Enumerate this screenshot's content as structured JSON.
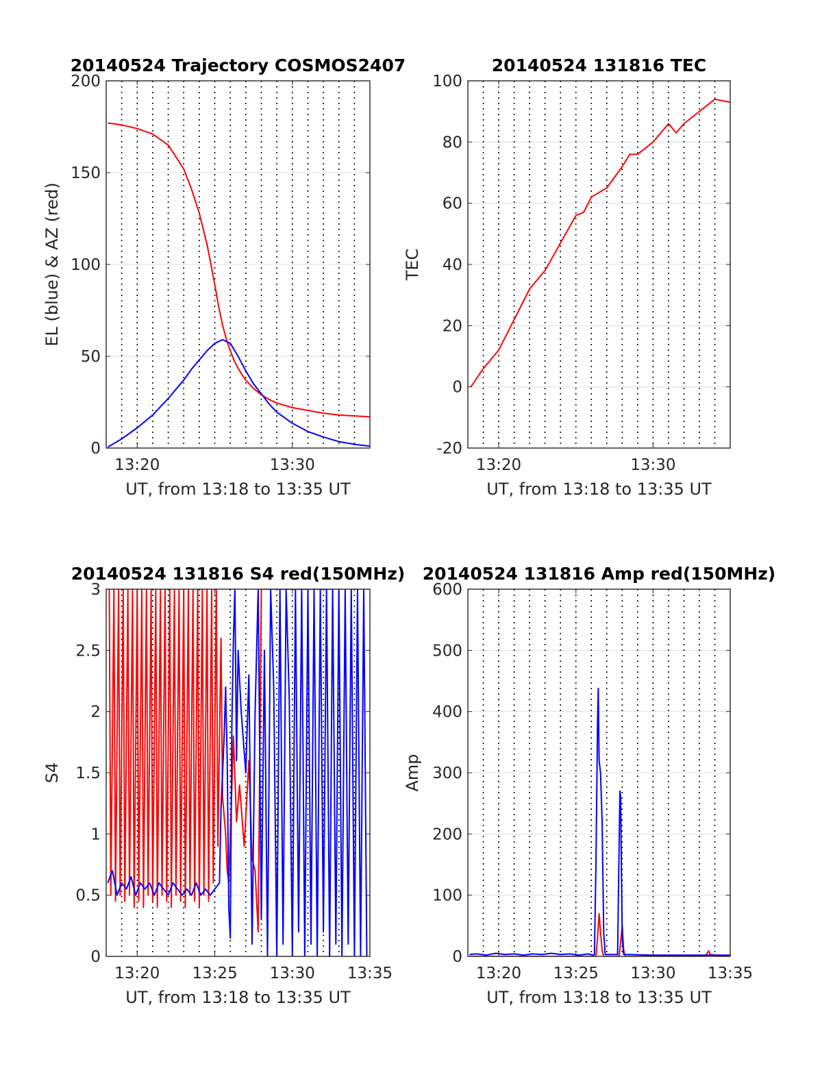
{
  "colors": {
    "red": "#ff0000",
    "blue": "#0000ff",
    "axis": "#262626",
    "grid": "#dedede"
  },
  "chart_data": [
    {
      "type": "line",
      "title": "20140524 Trajectory COSMOS2407",
      "xlabel": "UT, from 13:18 to 13:35 UT",
      "ylabel": "EL (blue) & AZ (red)",
      "xlim": [
        13.3,
        13.5833
      ],
      "ylim": [
        0,
        200
      ],
      "xticks": [
        {
          "v": 13.3333,
          "label": "13:20"
        },
        {
          "v": 13.5,
          "label": "13:30"
        }
      ],
      "yticks": [
        0,
        50,
        100,
        150,
        200
      ],
      "grid": true,
      "series": [
        {
          "color": "red",
          "x": [
            13.3017,
            13.3167,
            13.3333,
            13.35,
            13.3667,
            13.3833,
            13.3917,
            13.4,
            13.4083,
            13.4167,
            13.4208,
            13.425,
            13.4292,
            13.4333,
            13.4375,
            13.4417,
            13.4458,
            13.45,
            13.4583,
            13.4667,
            13.475,
            13.4833,
            13.5,
            13.5167,
            13.5333,
            13.55,
            13.5667,
            13.5833
          ],
          "y": [
            177,
            176,
            174,
            171,
            165,
            152,
            141,
            128,
            111,
            89,
            77,
            67,
            59,
            53,
            47.5,
            43.5,
            40,
            37,
            32.5,
            29,
            26.5,
            24.5,
            22,
            20.5,
            19,
            18,
            17.5,
            17
          ]
        },
        {
          "color": "blue",
          "x": [
            13.3017,
            13.3167,
            13.3333,
            13.35,
            13.3667,
            13.3833,
            13.3917,
            13.4,
            13.4083,
            13.4167,
            13.425,
            13.4333,
            13.4417,
            13.4458,
            13.45,
            13.4583,
            13.4667,
            13.475,
            13.4833,
            13.5,
            13.5167,
            13.5333,
            13.55,
            13.5667,
            13.5833
          ],
          "y": [
            0.5,
            5,
            11,
            18,
            27,
            37,
            43,
            48,
            53,
            57,
            59,
            57,
            50,
            46,
            42,
            35,
            29.5,
            24,
            19.5,
            13.5,
            9,
            6,
            3.5,
            2,
            1
          ]
        }
      ]
    },
    {
      "type": "line",
      "title": "20140524 131816 TEC",
      "xlabel": "UT, from 13:18 to 13:35 UT",
      "ylabel": "TEC",
      "xlim": [
        13.3,
        13.5833
      ],
      "ylim": [
        -20,
        100
      ],
      "xticks": [
        {
          "v": 13.3333,
          "label": "13:20"
        },
        {
          "v": 13.5,
          "label": "13:30"
        }
      ],
      "yticks": [
        -20,
        0,
        20,
        40,
        60,
        80,
        100
      ],
      "grid": true,
      "series": [
        {
          "color": "red",
          "x": [
            13.3033,
            13.3167,
            13.3333,
            13.35,
            13.3667,
            13.3833,
            13.4,
            13.4167,
            13.425,
            13.4333,
            13.45,
            13.4667,
            13.475,
            13.4833,
            13.5,
            13.5167,
            13.525,
            13.5333,
            13.55,
            13.5667,
            13.5833
          ],
          "y": [
            0,
            6,
            12,
            22,
            32,
            38,
            47,
            56,
            57,
            62,
            65,
            72,
            76,
            76,
            80,
            86,
            83,
            86,
            90,
            94,
            93
          ]
        }
      ]
    },
    {
      "type": "line",
      "title": "20140524 131816 S4 red(150MHz)",
      "xlabel": "UT, from 13:18 to 13:35 UT",
      "ylabel": "S4",
      "xlim": [
        13.3,
        13.5833
      ],
      "ylim": [
        0,
        3
      ],
      "xticks": [
        {
          "v": 13.3333,
          "label": "13:20"
        },
        {
          "v": 13.4167,
          "label": "13:25"
        },
        {
          "v": 13.5,
          "label": "13:30"
        },
        {
          "v": 13.5833,
          "label": "13:35"
        }
      ],
      "yticks": [
        0,
        0.5,
        1,
        1.5,
        2,
        2.5,
        3
      ],
      "grid": true,
      "series": [
        {
          "color": "red",
          "x": [
            13.3033,
            13.305,
            13.3083,
            13.31,
            13.3133,
            13.315,
            13.3183,
            13.32,
            13.3233,
            13.325,
            13.3283,
            13.33,
            13.3333,
            13.335,
            13.3383,
            13.34,
            13.3433,
            13.345,
            13.3483,
            13.35,
            13.3533,
            13.355,
            13.3583,
            13.36,
            13.3633,
            13.365,
            13.3683,
            13.37,
            13.3733,
            13.375,
            13.3783,
            13.38,
            13.3833,
            13.385,
            13.3883,
            13.39,
            13.3933,
            13.395,
            13.3983,
            13.4,
            13.4033,
            13.405,
            13.4083,
            13.41,
            13.4133,
            13.415,
            13.4183,
            13.42,
            13.4233,
            13.425,
            13.4283,
            13.43,
            13.4317,
            13.4367,
            13.44,
            13.4433,
            13.4483,
            13.4533,
            13.4567,
            13.46,
            13.4633,
            13.4667,
            13.5,
            13.5333,
            13.5417
          ],
          "y": [
            3,
            0.5,
            3,
            0.45,
            3,
            0.5,
            3,
            0.45,
            3,
            0.5,
            3,
            0.4,
            3,
            0.45,
            3,
            0.4,
            3,
            0.5,
            3,
            0.45,
            3,
            0.4,
            3,
            0.5,
            3,
            0.45,
            3,
            0.4,
            3,
            0.5,
            3,
            0.45,
            3,
            0.4,
            3,
            0.5,
            3,
            0.45,
            3,
            0.4,
            3,
            0.5,
            3,
            0.45,
            3,
            0.6,
            3,
            0.9,
            2.6,
            1.3,
            1.0,
            0.7,
            0.6,
            1.8,
            1.1,
            1.4,
            0.9,
            1.6,
            0.8,
            0.7,
            0.2,
            3,
            3,
            3,
            3
          ]
        },
        {
          "color": "blue",
          "x": [
            13.3017,
            13.3067,
            13.3117,
            13.3167,
            13.3217,
            13.3267,
            13.3317,
            13.3367,
            13.3417,
            13.3467,
            13.3517,
            13.3567,
            13.3617,
            13.3667,
            13.3717,
            13.3767,
            13.3817,
            13.3867,
            13.3917,
            13.3967,
            13.4017,
            13.4067,
            13.4117,
            13.4167,
            13.4217,
            13.4233,
            13.4267,
            13.4283,
            13.43,
            13.4317,
            13.4333,
            13.435,
            13.4367,
            13.4383,
            13.44,
            13.4417,
            13.445,
            13.45,
            13.4533,
            13.4567,
            13.46,
            13.4633,
            13.4667,
            13.47,
            13.4733,
            13.4767,
            13.48,
            13.4833,
            13.4867,
            13.49,
            13.4933,
            13.4967,
            13.5,
            13.5033,
            13.5067,
            13.51,
            13.5133,
            13.5167,
            13.52,
            13.5233,
            13.5267,
            13.53,
            13.5333,
            13.5367,
            13.54,
            13.5433,
            13.5467,
            13.55,
            13.5533,
            13.5567,
            13.56,
            13.5633,
            13.5667,
            13.57,
            13.5733,
            13.5767,
            13.58
          ],
          "y": [
            0.6,
            0.7,
            0.5,
            0.6,
            0.55,
            0.65,
            0.5,
            0.6,
            0.55,
            0.6,
            0.5,
            0.6,
            0.55,
            0.5,
            0.6,
            0.55,
            0.5,
            0.55,
            0.5,
            0.6,
            0.5,
            0.55,
            0.5,
            0.55,
            0.6,
            1.2,
            1.8,
            2.2,
            1.6,
            0.4,
            0.15,
            1.9,
            2.6,
            3,
            1.6,
            2.5,
            2.0,
            1.5,
            2.3,
            0.1,
            2.0,
            3,
            0.3,
            2.5,
            0,
            3,
            2.2,
            0,
            3,
            0.1,
            3,
            2.1,
            0,
            3,
            0.2,
            3,
            0,
            3,
            0.1,
            3,
            0,
            3,
            0.2,
            3,
            0,
            3,
            0.1,
            3,
            0,
            3,
            0.1,
            3,
            0,
            3,
            0,
            3,
            0
          ]
        }
      ]
    },
    {
      "type": "line",
      "title": "20140524 131816 Amp red(150MHz)",
      "xlabel": "UT, from 13:18 to 13:35 UT",
      "ylabel": "Amp",
      "xlim": [
        13.3,
        13.5833
      ],
      "ylim": [
        0,
        600
      ],
      "xticks": [
        {
          "v": 13.3333,
          "label": "13:20"
        },
        {
          "v": 13.4167,
          "label": "13:25"
        },
        {
          "v": 13.5,
          "label": "13:30"
        },
        {
          "v": 13.5833,
          "label": "13:35"
        }
      ],
      "yticks": [
        0,
        100,
        200,
        300,
        400,
        500,
        600
      ],
      "grid": true,
      "series": [
        {
          "color": "red",
          "x": [
            13.3017,
            13.4383,
            13.44,
            13.4417,
            13.4433,
            13.445,
            13.4467,
            13.4633,
            13.465,
            13.4667,
            13.4683,
            13.47,
            13.5567,
            13.5583,
            13.56,
            13.5617,
            13.5833
          ],
          "y": [
            0,
            0,
            30,
            70,
            40,
            10,
            0,
            0,
            25,
            50,
            10,
            0,
            0,
            5,
            9,
            3,
            0
          ]
        },
        {
          "color": "blue",
          "x": [
            13.3017,
            13.31,
            13.32,
            13.33,
            13.34,
            13.35,
            13.36,
            13.37,
            13.38,
            13.39,
            13.4,
            13.41,
            13.42,
            13.43,
            13.435,
            13.4367,
            13.4383,
            13.44,
            13.4408,
            13.4417,
            13.4433,
            13.445,
            13.4467,
            13.4483,
            13.4533,
            13.4617,
            13.4633,
            13.4642,
            13.465,
            13.4658,
            13.4667,
            13.4683,
            13.4717,
            13.5,
            13.53,
            13.56,
            13.5833
          ],
          "y": [
            3,
            4,
            2,
            5,
            3,
            4,
            2,
            4,
            3,
            5,
            3,
            4,
            2,
            4,
            2,
            3,
            150,
            380,
            438,
            320,
            300,
            220,
            40,
            3,
            3,
            3,
            180,
            270,
            260,
            150,
            30,
            3,
            3,
            2,
            2,
            2,
            2
          ]
        }
      ]
    }
  ]
}
